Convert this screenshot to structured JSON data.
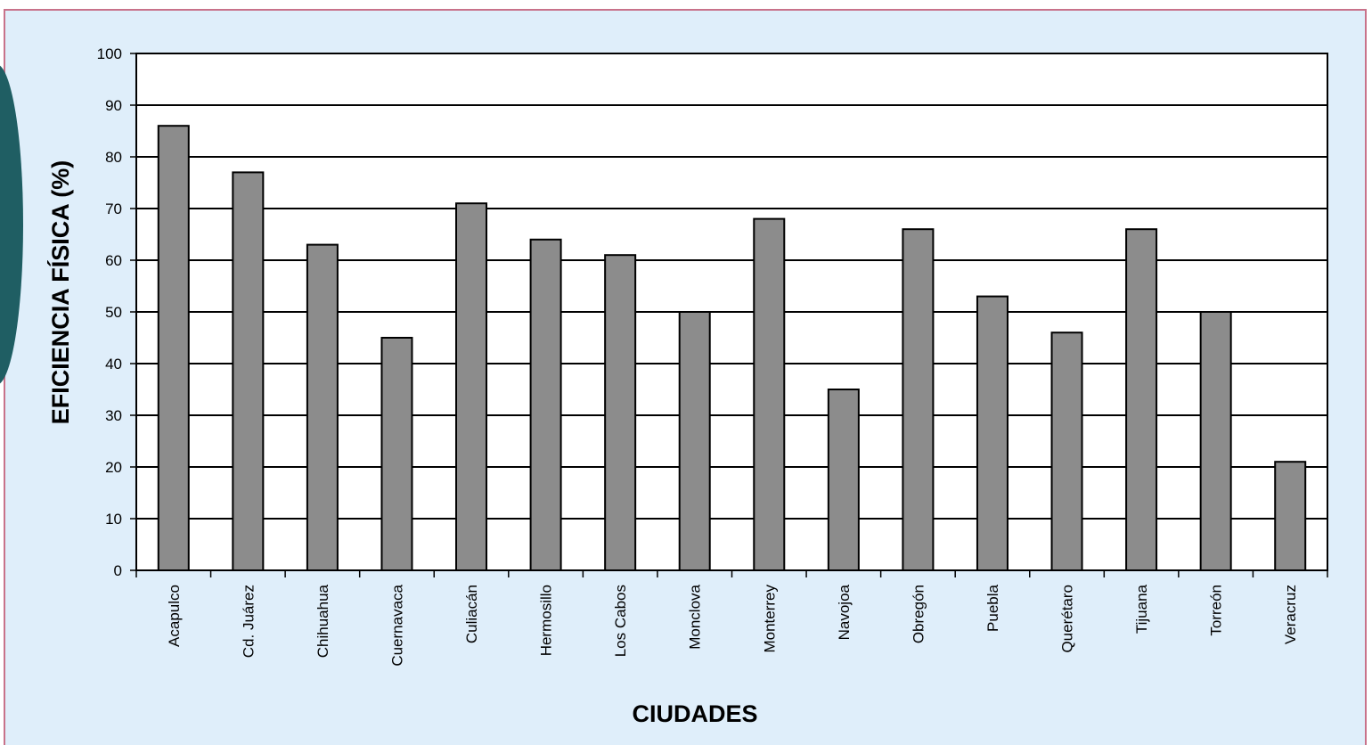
{
  "colors": {
    "background": "#dfeefa",
    "plot_area": "#ffffff",
    "bar_fill": "#8c8c8c",
    "bar_stroke": "#000000",
    "frame_border": "#c8728a",
    "decoration": "#1f5e63"
  },
  "chart_data": {
    "type": "bar",
    "title": "",
    "xlabel": "CIUDADES",
    "ylabel": "EFICIENCIA FÍSICA (%)",
    "ylim": [
      0,
      100
    ],
    "yticks": [
      0,
      10,
      20,
      30,
      40,
      50,
      60,
      70,
      80,
      90,
      100
    ],
    "grid": true,
    "legend": "none",
    "categories": [
      "Acapulco",
      "Cd. Juárez",
      "Chihuahua",
      "Cuernavaca",
      "Culiacán",
      "Hermosillo",
      "Los Cabos",
      "Monclova",
      "Monterrey",
      "Navojoa",
      "Obregón",
      "Puebla",
      "Querétaro",
      "Tijuana",
      "Torreón",
      "Veracruz"
    ],
    "values": [
      86,
      77,
      63,
      45,
      71,
      64,
      61,
      50,
      68,
      35,
      66,
      53,
      46,
      66,
      50,
      21
    ]
  }
}
